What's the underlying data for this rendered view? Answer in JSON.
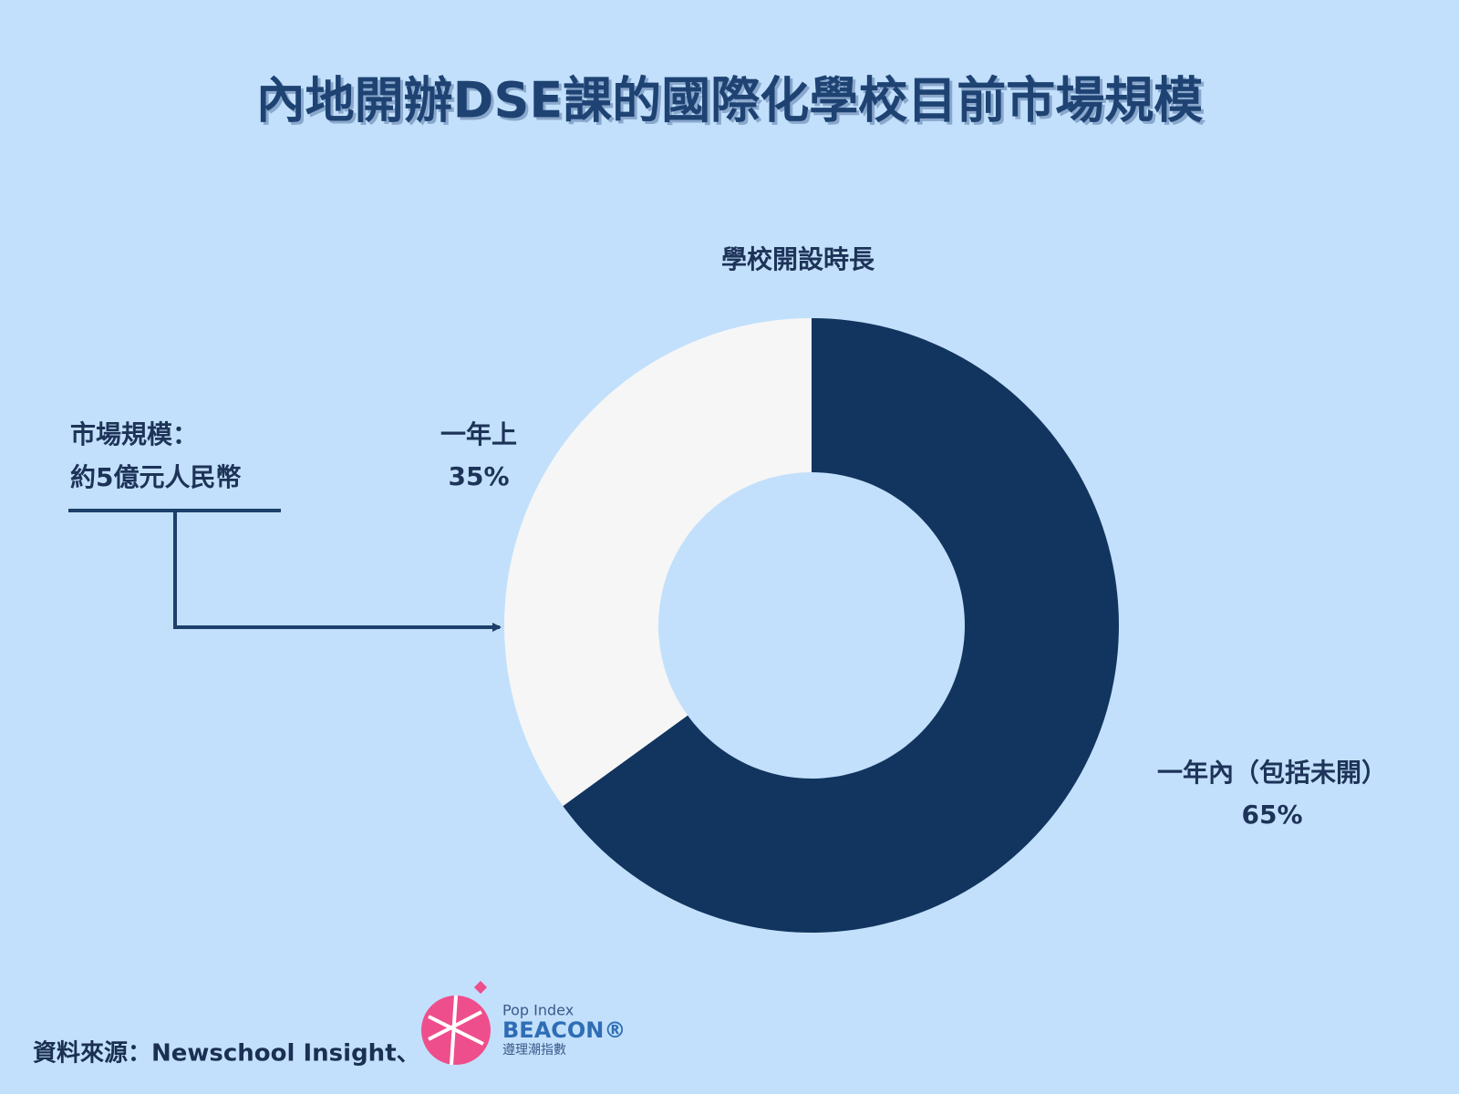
{
  "chart_data": {
    "type": "pie",
    "donut": true,
    "title": "內地開辦DSE課的國際化學校目前市場規模",
    "subtitle": "學校開設時長",
    "categories": [
      "一年內（包括未開）",
      "一年上"
    ],
    "values": [
      65,
      35
    ],
    "value_labels": [
      "65%",
      "35%"
    ],
    "colors": [
      "#12355f",
      "#f6f6f6"
    ],
    "annotation": [
      "市場規模：",
      "約5億元人民幣"
    ],
    "source": "資料來源：Newschool Insight、",
    "logo": {
      "top": "Pop Index",
      "name": "BEACON®",
      "bottom": "遵理潮指數"
    }
  }
}
